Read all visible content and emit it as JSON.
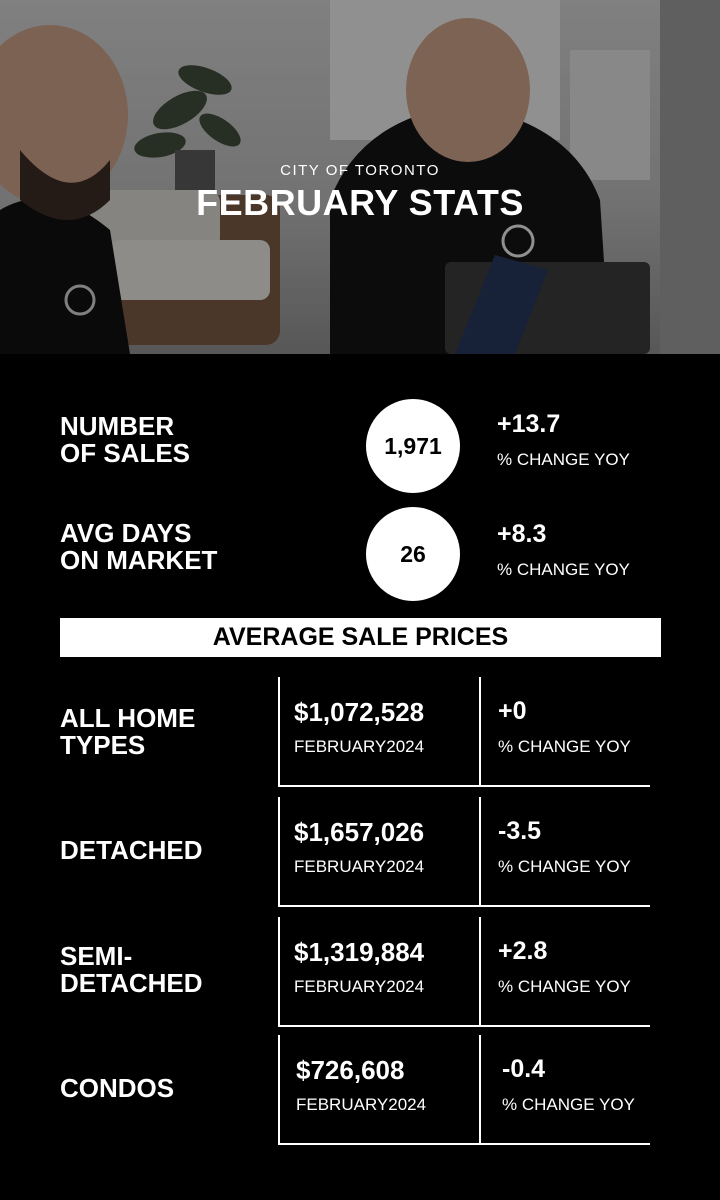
{
  "hero": {
    "subtitle": "CITY OF TORONTO",
    "title": "FEBRUARY STATS"
  },
  "stats": [
    {
      "label_line1": "NUMBER",
      "label_line2": "OF SALES",
      "value": "1,971",
      "change": "+13.7",
      "change_label": "% CHANGE YOY"
    },
    {
      "label_line1": "AVG DAYS",
      "label_line2": "ON MARKET",
      "value": "26",
      "change": "+8.3",
      "change_label": "% CHANGE YOY"
    }
  ],
  "banner": "AVERAGE SALE PRICES",
  "prices": [
    {
      "label_line1": "ALL HOME",
      "label_line2": "TYPES",
      "price": "$1,072,528",
      "month": "FEBRUARY2024",
      "change": "+0",
      "change_label": "% CHANGE YOY"
    },
    {
      "label_line1": "DETACHED",
      "label_line2": "",
      "price": "$1,657,026",
      "month": "FEBRUARY2024",
      "change": "-3.5",
      "change_label": "% CHANGE YOY"
    },
    {
      "label_line1": "SEMI-",
      "label_line2": "DETACHED",
      "price": "$1,319,884",
      "month": "FEBRUARY2024",
      "change": "+2.8",
      "change_label": "% CHANGE YOY"
    },
    {
      "label_line1": "CONDOS",
      "label_line2": "",
      "price": "$726,608",
      "month": "FEBRUARY2024",
      "change": "-0.4",
      "change_label": "% CHANGE YOY"
    }
  ],
  "colors": {
    "background": "#000000",
    "text": "#ffffff",
    "accent_fill": "#ffffff"
  }
}
